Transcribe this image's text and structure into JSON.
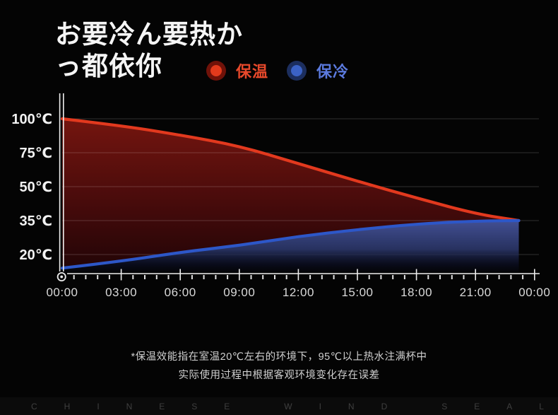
{
  "title": {
    "line1": "お要冷ん要热か",
    "line2": "っ都依你"
  },
  "legend": {
    "items": [
      {
        "name": "warm",
        "label": "保温",
        "dot_color": "#e23a1c",
        "ring_color": "#701209",
        "text_color": "#e8492b"
      },
      {
        "name": "cold",
        "label": "保冷",
        "dot_color": "#3b62c6",
        "ring_color": "#1c2e5e",
        "text_color": "#5b7ade"
      }
    ]
  },
  "footnote": {
    "line1": "*保温效能指在室温20℃左右的环境下，95℃以上热水注满杯中",
    "line2": "实际使用过程中根据客观环境变化存在误差"
  },
  "bottom_bar": {
    "letters": [
      "C",
      "H",
      "I",
      "N",
      "E",
      "S",
      "E",
      "",
      "W",
      "I",
      "N",
      "D",
      "",
      "S",
      "E",
      "A",
      "L"
    ]
  },
  "colors": {
    "background": "#040404",
    "axis": "#ededed",
    "grid": "#ffffff",
    "red_fill_top": "#75150f",
    "red_fill_mid": "#470b0b",
    "red_fill_bottom": "#200406",
    "blue_fill_top": "#46549c",
    "blue_fill_mid": "#2b3668",
    "blue_fill_bottom": "#0d1130"
  },
  "chart_data": {
    "type": "area",
    "title": "",
    "xlabel": "",
    "ylabel": "",
    "grid": true,
    "legend_position": "top",
    "x_hours": [
      0,
      3,
      6,
      9,
      12,
      15,
      18,
      21,
      23.2
    ],
    "x_tick_hours": [
      0,
      3,
      6,
      9,
      12,
      15,
      18,
      21,
      24
    ],
    "x_tick_labels": [
      "00:00",
      "03:00",
      "06:00",
      "09:00",
      "12:00",
      "15:00",
      "18:00",
      "21:00",
      "00:00"
    ],
    "y_tick_values": [
      100,
      75,
      50,
      35,
      20
    ],
    "y_tick_labels": [
      "100℃",
      "75℃",
      "50℃",
      "35℃",
      "20℃"
    ],
    "series": [
      {
        "name": "保温",
        "line_color": "#e2391e",
        "values": [
          100,
          95,
          88,
          80,
          67,
          54,
          45,
          38,
          35
        ]
      },
      {
        "name": "保冷",
        "line_color": "#2d57c8",
        "values": [
          14,
          17,
          21,
          24,
          28,
          31,
          33.5,
          34.8,
          35
        ]
      }
    ]
  }
}
